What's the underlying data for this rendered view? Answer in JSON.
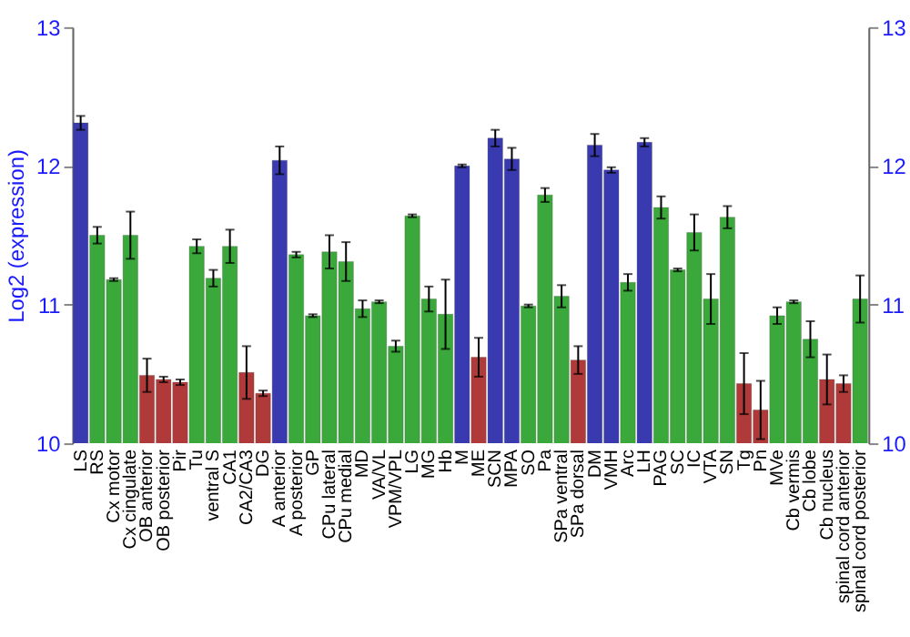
{
  "chart_data": {
    "type": "bar",
    "ylabel": "Log2 (expression)",
    "categories": [
      "LS",
      "RS",
      "Cx motor",
      "Cx cingulate",
      "OB anterior",
      "OB posterior",
      "Pir",
      "Tu",
      "ventral S",
      "CA1",
      "CA2/CA3",
      "DG",
      "A anterior",
      "A posterior",
      "GP",
      "CPu lateral",
      "CPu medial",
      "MD",
      "VA/VL",
      "VPM/VPL",
      "LG",
      "MG",
      "Hb",
      "M",
      "ME",
      "SCN",
      "MPA",
      "SO",
      "Pa",
      "SPa ventral",
      "SPa dorsal",
      "DM",
      "VMH",
      "Arc",
      "LH",
      "PAG",
      "SC",
      "IC",
      "VTA",
      "SN",
      "Tg",
      "Pn",
      "MVe",
      "Cb vermis",
      "Cb lobe",
      "Cb nucleus",
      "spinal cord anterior",
      "spinal cord posterior"
    ],
    "values": [
      12.31,
      11.5,
      11.18,
      11.5,
      10.49,
      10.46,
      10.44,
      11.42,
      11.19,
      11.42,
      10.51,
      10.36,
      12.04,
      11.36,
      10.92,
      11.38,
      11.31,
      10.97,
      11.02,
      10.7,
      11.64,
      11.04,
      10.93,
      12.0,
      10.62,
      12.2,
      12.05,
      10.99,
      11.79,
      11.06,
      10.6,
      12.15,
      11.97,
      11.16,
      12.17,
      11.7,
      11.25,
      11.52,
      11.04,
      11.63,
      10.43,
      10.24,
      10.92,
      11.02,
      10.75,
      10.46,
      10.43,
      11.04
    ],
    "errors": [
      0.05,
      0.06,
      0.01,
      0.17,
      0.12,
      0.02,
      0.02,
      0.05,
      0.06,
      0.12,
      0.19,
      0.02,
      0.1,
      0.02,
      0.01,
      0.12,
      0.14,
      0.06,
      0.01,
      0.04,
      0.01,
      0.09,
      0.25,
      0.01,
      0.14,
      0.06,
      0.08,
      0.01,
      0.05,
      0.08,
      0.1,
      0.08,
      0.02,
      0.06,
      0.03,
      0.08,
      0.01,
      0.13,
      0.18,
      0.08,
      0.22,
      0.21,
      0.06,
      0.01,
      0.13,
      0.18,
      0.06,
      0.17
    ],
    "colors": [
      "#3a3ab0",
      "#3aa83a",
      "#3aa83a",
      "#3aa83a",
      "#b03a3a",
      "#b03a3a",
      "#b03a3a",
      "#3aa83a",
      "#3aa83a",
      "#3aa83a",
      "#b03a3a",
      "#b03a3a",
      "#3a3ab0",
      "#3aa83a",
      "#3aa83a",
      "#3aa83a",
      "#3aa83a",
      "#3aa83a",
      "#3aa83a",
      "#3aa83a",
      "#3aa83a",
      "#3aa83a",
      "#3aa83a",
      "#3a3ab0",
      "#b03a3a",
      "#3a3ab0",
      "#3a3ab0",
      "#3aa83a",
      "#3aa83a",
      "#3aa83a",
      "#b03a3a",
      "#3a3ab0",
      "#3a3ab0",
      "#3aa83a",
      "#3a3ab0",
      "#3aa83a",
      "#3aa83a",
      "#3aa83a",
      "#3aa83a",
      "#3aa83a",
      "#b03a3a",
      "#b03a3a",
      "#3aa83a",
      "#3aa83a",
      "#3aa83a",
      "#b03a3a",
      "#b03a3a",
      "#3aa83a"
    ],
    "ylim": [
      10,
      13
    ],
    "yticks": [
      10,
      11,
      12,
      13
    ],
    "y2lim": [
      10,
      13
    ],
    "y2ticks": [
      10,
      11,
      12,
      13
    ],
    "grid": "y"
  }
}
